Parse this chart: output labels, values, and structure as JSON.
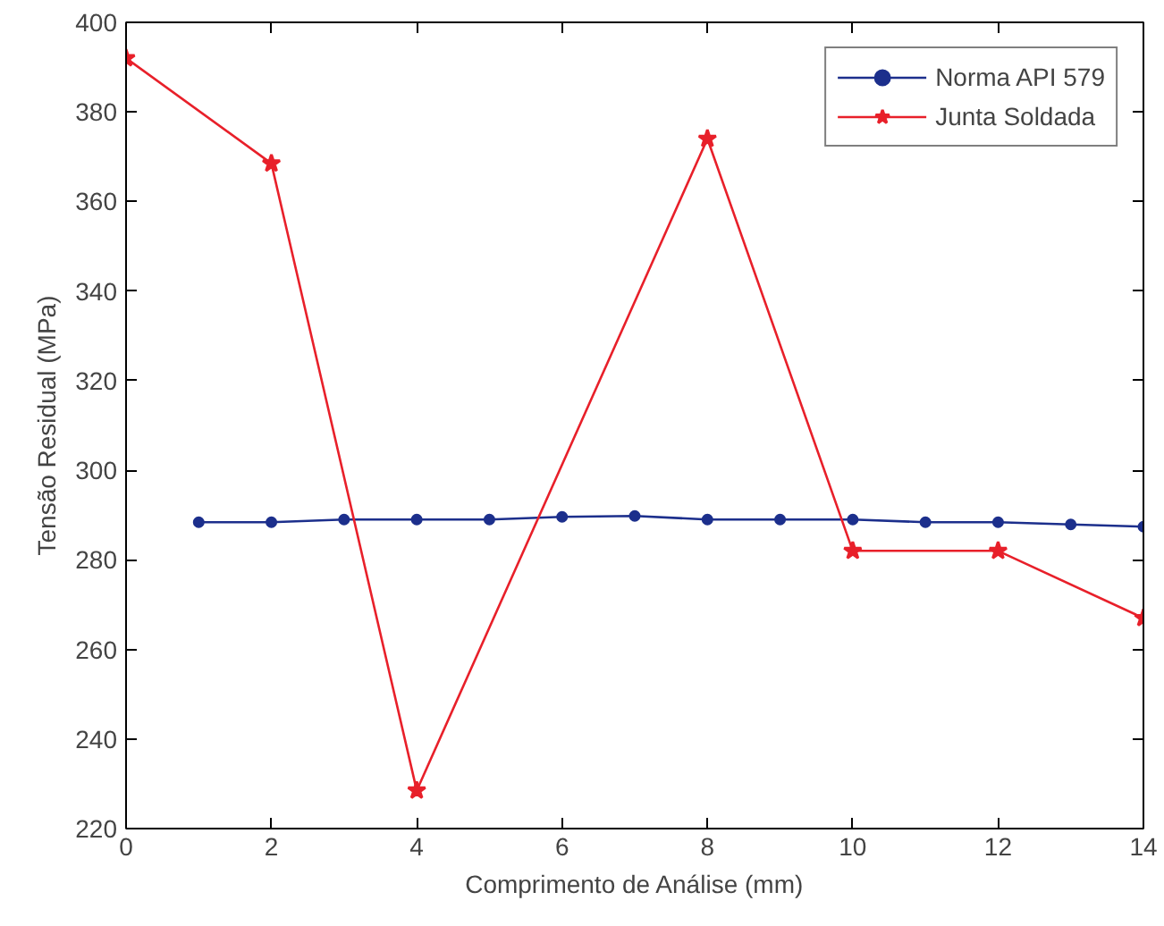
{
  "chart_data": {
    "type": "line",
    "xlabel": "Comprimento de Análise (mm)",
    "ylabel": "Tensão Residual (MPa)",
    "xlim": [
      0,
      14
    ],
    "xticks": [
      0,
      2,
      4,
      6,
      8,
      10,
      12,
      14
    ],
    "ylim": [
      220,
      400
    ],
    "yticks": [
      220,
      240,
      260,
      280,
      300,
      320,
      340,
      360,
      380,
      400
    ],
    "grid": false,
    "legend": "top right",
    "series": [
      {
        "name": "Norma API 579",
        "color": "#1c2f8c",
        "marker": "circle",
        "x": [
          1,
          2,
          3,
          4,
          5,
          6,
          7,
          8,
          9,
          10,
          11,
          12,
          13,
          14
        ],
        "values": [
          288.4,
          288.4,
          289,
          289,
          289,
          289.6,
          289.8,
          289,
          289,
          289,
          288.4,
          288.4,
          287.9,
          287.4
        ]
      },
      {
        "name": "Junta Soldada",
        "color": "#e8202a",
        "marker": "star",
        "x": [
          0,
          2,
          4,
          8,
          10,
          12,
          14
        ],
        "values": [
          392,
          368.5,
          228.5,
          374,
          282,
          282,
          267
        ]
      }
    ]
  }
}
